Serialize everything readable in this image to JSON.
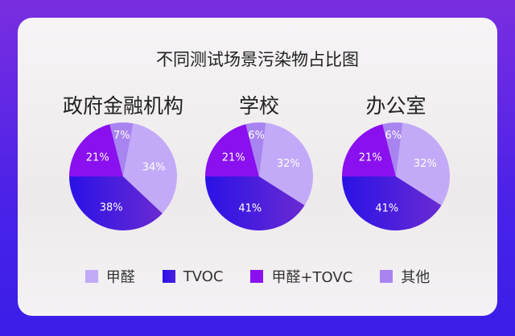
{
  "chart_data": {
    "type": "pie",
    "title": "不同测试场景污染物占比图",
    "categories": [
      "甲醛",
      "TVOC",
      "甲醛+TOVC",
      "其他"
    ],
    "colors": [
      "#c2aaf8",
      "#3a18e0",
      "#8a10f0",
      "#a884f0"
    ],
    "legend_position": "bottom",
    "charts": [
      {
        "name": "政府金融机构",
        "values": [
          34,
          38,
          21,
          7
        ],
        "labels": [
          "34%",
          "38%",
          "21%",
          "7%"
        ]
      },
      {
        "name": "学校",
        "values": [
          32,
          41,
          21,
          6
        ],
        "labels": [
          "32%",
          "41%",
          "21%",
          "6%"
        ]
      },
      {
        "name": "办公室",
        "values": [
          32,
          41,
          21,
          6
        ],
        "labels": [
          "32%",
          "41%",
          "21%",
          "6%"
        ]
      }
    ]
  }
}
